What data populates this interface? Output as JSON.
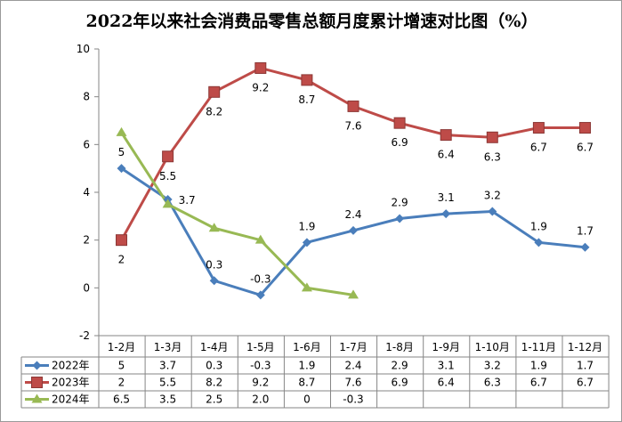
{
  "chart_data": {
    "type": "line",
    "title": "2022年以来社会消费品零售总额月度累计增速对比图（%）",
    "categories": [
      "1-2月",
      "1-3月",
      "1-4月",
      "1-5月",
      "1-6月",
      "1-7月",
      "1-8月",
      "1-9月",
      "1-10月",
      "1-11月",
      "1-12月"
    ],
    "ylim": [
      -2,
      10
    ],
    "yticks": [
      -2,
      0,
      2,
      4,
      6,
      8,
      10
    ],
    "grid": false,
    "legend": "data-table",
    "series": [
      {
        "name": "2022年",
        "color": "#4A7EBB",
        "marker": "diamond",
        "values": [
          5,
          3.7,
          0.3,
          -0.3,
          1.9,
          2.4,
          2.9,
          3.1,
          3.2,
          1.9,
          1.7
        ],
        "labels": [
          "5",
          "3.7",
          "0.3",
          "-0.3",
          "1.9",
          "2.4",
          "2.9",
          "3.1",
          "3.2",
          "1.9",
          "1.7"
        ]
      },
      {
        "name": "2023年",
        "color": "#BE4B48",
        "marker": "square",
        "values": [
          2,
          5.5,
          8.2,
          9.2,
          8.7,
          7.6,
          6.9,
          6.4,
          6.3,
          6.7,
          6.7
        ],
        "labels": [
          "2",
          "5.5",
          "8.2",
          "9.2",
          "8.7",
          "7.6",
          "6.9",
          "6.4",
          "6.3",
          "6.7",
          "6.7"
        ]
      },
      {
        "name": "2024年",
        "color": "#98B954",
        "marker": "triangle",
        "values": [
          6.5,
          3.5,
          2.5,
          2.0,
          0,
          -0.3,
          null,
          null,
          null,
          null,
          null
        ],
        "labels": [
          "6.5",
          "3.5",
          "2.5",
          "2.0",
          "0",
          "-0.3",
          "",
          "",
          "",
          "",
          ""
        ]
      }
    ]
  }
}
